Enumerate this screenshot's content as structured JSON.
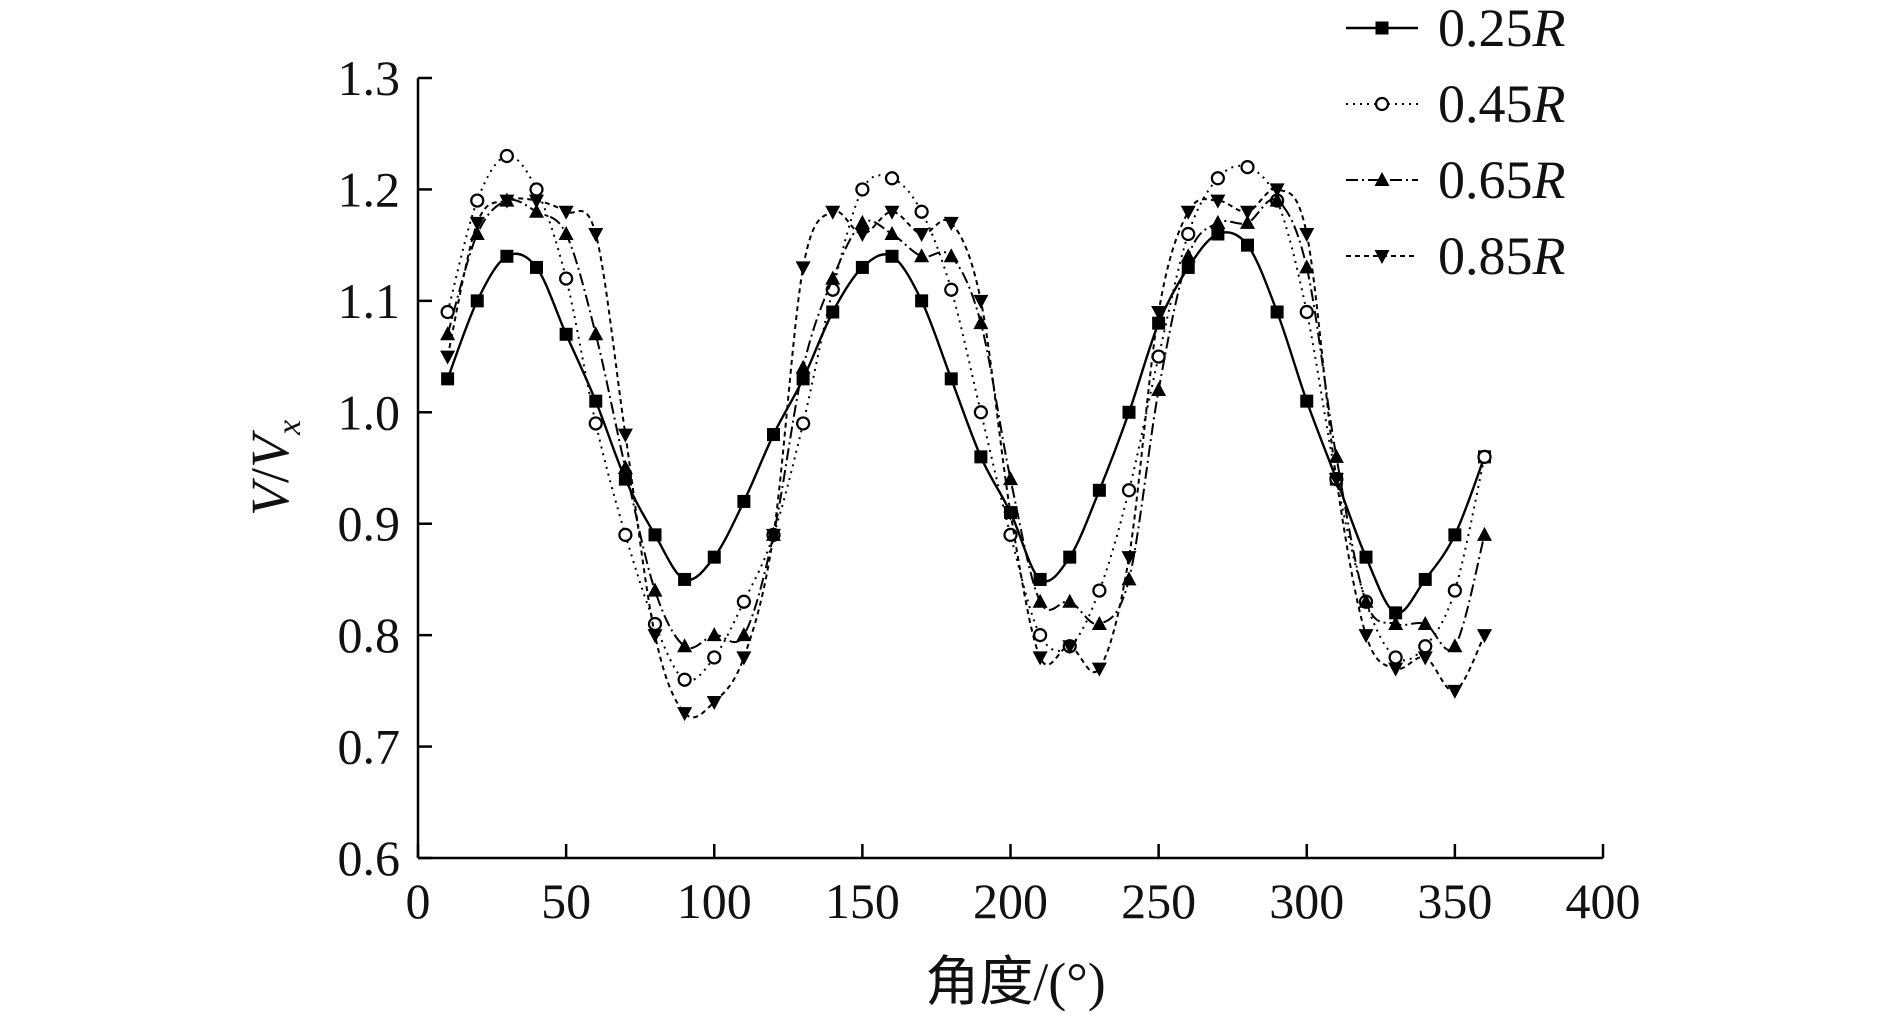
{
  "chart_data": {
    "type": "line",
    "title": "",
    "xlabel": "角度/(°)",
    "ylabel_main": "V",
    "ylabel_sub": "x",
    "xlim": [
      0,
      400
    ],
    "ylim": [
      0.6,
      1.3
    ],
    "xticks": [
      "0",
      "50",
      "100",
      "150",
      "200",
      "250",
      "300",
      "350",
      "400"
    ],
    "yticks": [
      "0.6",
      "0.7",
      "0.8",
      "0.9",
      "1.0",
      "1.1",
      "1.2",
      "1.3"
    ],
    "grid": false,
    "legend_position": "top-right",
    "x": [
      10,
      20,
      30,
      40,
      50,
      60,
      70,
      80,
      90,
      100,
      110,
      120,
      130,
      140,
      150,
      160,
      170,
      180,
      190,
      200,
      210,
      220,
      230,
      240,
      250,
      260,
      270,
      280,
      290,
      300,
      310,
      320,
      330,
      340,
      350,
      360
    ],
    "series": [
      {
        "name": "0.25R",
        "label_num": "0.25",
        "label_var": "R",
        "marker": "square",
        "dash": "",
        "values": [
          1.03,
          1.1,
          1.14,
          1.13,
          1.07,
          1.01,
          0.94,
          0.89,
          0.85,
          0.87,
          0.92,
          0.98,
          1.03,
          1.09,
          1.13,
          1.14,
          1.1,
          1.03,
          0.96,
          0.91,
          0.85,
          0.87,
          0.93,
          1.0,
          1.08,
          1.13,
          1.16,
          1.15,
          1.09,
          1.01,
          0.94,
          0.87,
          0.82,
          0.85,
          0.89,
          0.96
        ]
      },
      {
        "name": "0.45R",
        "label_num": "0.45",
        "label_var": "R",
        "marker": "circle",
        "dash": "2,5",
        "values": [
          1.09,
          1.19,
          1.23,
          1.2,
          1.12,
          0.99,
          0.89,
          0.81,
          0.76,
          0.78,
          0.83,
          0.89,
          0.99,
          1.11,
          1.2,
          1.21,
          1.18,
          1.11,
          1.0,
          0.89,
          0.8,
          0.79,
          0.84,
          0.93,
          1.05,
          1.16,
          1.21,
          1.22,
          1.19,
          1.09,
          0.94,
          0.83,
          0.78,
          0.79,
          0.84,
          0.96
        ]
      },
      {
        "name": "0.65R",
        "label_num": "0.65",
        "label_var": "R",
        "marker": "triangle-up",
        "dash": "12,4,2,4",
        "values": [
          1.07,
          1.16,
          1.19,
          1.18,
          1.16,
          1.07,
          0.95,
          0.84,
          0.79,
          0.8,
          0.8,
          0.89,
          1.04,
          1.12,
          1.17,
          1.16,
          1.14,
          1.14,
          1.08,
          0.94,
          0.83,
          0.83,
          0.81,
          0.85,
          1.02,
          1.14,
          1.17,
          1.17,
          1.19,
          1.13,
          0.96,
          0.83,
          0.81,
          0.81,
          0.79,
          0.89
        ]
      },
      {
        "name": "0.85R",
        "label_num": "0.85",
        "label_var": "R",
        "marker": "triangle-down",
        "dash": "5,4",
        "values": [
          1.05,
          1.17,
          1.19,
          1.19,
          1.18,
          1.16,
          0.98,
          0.8,
          0.73,
          0.74,
          0.78,
          0.89,
          1.13,
          1.18,
          1.16,
          1.18,
          1.16,
          1.17,
          1.1,
          0.91,
          0.78,
          0.79,
          0.77,
          0.87,
          1.09,
          1.18,
          1.19,
          1.18,
          1.2,
          1.16,
          0.94,
          0.8,
          0.77,
          0.78,
          0.75,
          0.8
        ]
      }
    ]
  }
}
